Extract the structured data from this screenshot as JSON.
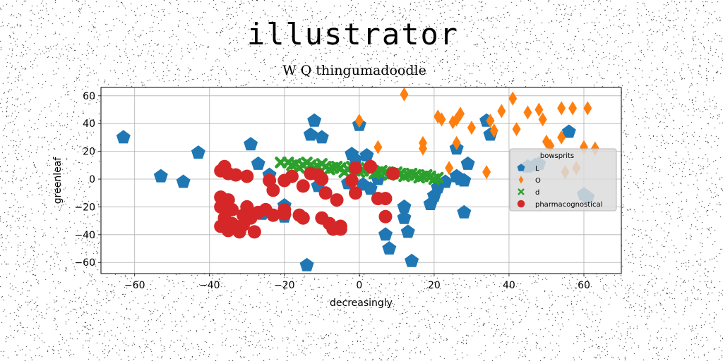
{
  "chart_data": {
    "type": "scatter",
    "title": "illustrator",
    "subtitle": "W Q thingumadoodle",
    "xlabel": "decreasingly",
    "ylabel": "greenleaf",
    "xlim": [
      -69,
      70
    ],
    "ylim": [
      -68,
      66
    ],
    "xticks": [
      -60,
      -40,
      -20,
      0,
      20,
      40,
      60
    ],
    "yticks": [
      -60,
      -40,
      -20,
      0,
      20,
      40,
      60
    ],
    "grid": true,
    "legend": {
      "title": "bowsprits",
      "placement": "right"
    },
    "series": [
      {
        "name": "L",
        "marker": "pentagon",
        "color": "#1f77b4",
        "points": [
          [
            -63,
            30
          ],
          [
            -53,
            2
          ],
          [
            -47,
            -2
          ],
          [
            -43,
            19
          ],
          [
            -29,
            25
          ],
          [
            -27,
            11
          ],
          [
            -24,
            3
          ],
          [
            -20,
            -19
          ],
          [
            -20,
            -27
          ],
          [
            -14,
            -62
          ],
          [
            -13,
            32
          ],
          [
            -12,
            42
          ],
          [
            -11,
            -5
          ],
          [
            -10,
            30
          ],
          [
            -3,
            -3
          ],
          [
            -2,
            18
          ],
          [
            -1,
            14
          ],
          [
            0,
            39
          ],
          [
            1,
            -4
          ],
          [
            2,
            17
          ],
          [
            5,
            0
          ],
          [
            7,
            -40
          ],
          [
            8,
            -50
          ],
          [
            12,
            -20
          ],
          [
            12,
            -28
          ],
          [
            13,
            -38
          ],
          [
            14,
            -59
          ],
          [
            19,
            -18
          ],
          [
            20,
            -12
          ],
          [
            21,
            -6
          ],
          [
            23,
            -2
          ],
          [
            26,
            22
          ],
          [
            27,
            0
          ],
          [
            28,
            -1
          ],
          [
            28,
            -24
          ],
          [
            29,
            11
          ],
          [
            34,
            42
          ],
          [
            35,
            32
          ],
          [
            45,
            9
          ],
          [
            47,
            10
          ],
          [
            48,
            11
          ],
          [
            56,
            34
          ],
          [
            60,
            -11
          ],
          [
            61,
            -13
          ],
          [
            -26,
            -25
          ],
          [
            3,
            -7
          ],
          [
            26,
            2
          ]
        ]
      },
      {
        "name": "O",
        "marker": "diamond",
        "color": "#ff7f0e",
        "points": [
          [
            0,
            42
          ],
          [
            5,
            23
          ],
          [
            12,
            61
          ],
          [
            17,
            22
          ],
          [
            17,
            26
          ],
          [
            21,
            45
          ],
          [
            22,
            43
          ],
          [
            24,
            8
          ],
          [
            25,
            41
          ],
          [
            26,
            26
          ],
          [
            26,
            43
          ],
          [
            27,
            47
          ],
          [
            30,
            37
          ],
          [
            34,
            5
          ],
          [
            35,
            42
          ],
          [
            36,
            35
          ],
          [
            38,
            49
          ],
          [
            41,
            58
          ],
          [
            42,
            36
          ],
          [
            45,
            48
          ],
          [
            48,
            50
          ],
          [
            49,
            43
          ],
          [
            50,
            27
          ],
          [
            51,
            24
          ],
          [
            54,
            51
          ],
          [
            54,
            30
          ],
          [
            55,
            5
          ],
          [
            57,
            51
          ],
          [
            58,
            8
          ],
          [
            60,
            23
          ],
          [
            61,
            51
          ],
          [
            63,
            22
          ]
        ]
      },
      {
        "name": "d",
        "marker": "x",
        "color": "#2ca02c",
        "points": [
          [
            -21,
            12
          ],
          [
            -19,
            12
          ],
          [
            -17,
            11
          ],
          [
            -15,
            10
          ],
          [
            -13,
            10
          ],
          [
            -11,
            9
          ],
          [
            -9,
            9
          ],
          [
            -7,
            8
          ],
          [
            -5,
            8
          ],
          [
            -3,
            7
          ],
          [
            -1,
            7
          ],
          [
            1,
            6
          ],
          [
            3,
            6
          ],
          [
            5,
            5
          ],
          [
            7,
            5
          ],
          [
            9,
            4
          ],
          [
            11,
            4
          ],
          [
            13,
            3
          ],
          [
            15,
            3
          ],
          [
            17,
            2
          ],
          [
            19,
            2
          ],
          [
            21,
            1
          ],
          [
            -18,
            10
          ],
          [
            -14,
            12
          ],
          [
            -10,
            11
          ],
          [
            -6,
            9
          ],
          [
            -2,
            9
          ],
          [
            2,
            8
          ],
          [
            6,
            6
          ],
          [
            10,
            5
          ],
          [
            14,
            4
          ],
          [
            18,
            3
          ],
          [
            -16,
            8
          ],
          [
            -12,
            8
          ],
          [
            -8,
            7
          ],
          [
            -4,
            5
          ],
          [
            0,
            5
          ],
          [
            4,
            4
          ],
          [
            8,
            3
          ],
          [
            12,
            2
          ],
          [
            16,
            1
          ],
          [
            20,
            0
          ]
        ]
      },
      {
        "name": "pharmacognostical",
        "marker": "circle",
        "color": "#d62728",
        "points": [
          [
            -37,
            6
          ],
          [
            -36,
            9
          ],
          [
            -35,
            4
          ],
          [
            -33,
            3
          ],
          [
            -30,
            2
          ],
          [
            -24,
            -1
          ],
          [
            -23,
            -8
          ],
          [
            -20,
            -1
          ],
          [
            -18,
            2
          ],
          [
            -15,
            -5
          ],
          [
            -13,
            4
          ],
          [
            -11,
            3
          ],
          [
            -10,
            0
          ],
          [
            -9,
            -10
          ],
          [
            -6,
            -15
          ],
          [
            -2,
            -1
          ],
          [
            -1,
            -10
          ],
          [
            3,
            9
          ],
          [
            5,
            -14
          ],
          [
            7,
            -14
          ],
          [
            9,
            4
          ],
          [
            -37,
            -13
          ],
          [
            -35,
            -15
          ],
          [
            -37,
            -20
          ],
          [
            -34,
            -22
          ],
          [
            -36,
            -28
          ],
          [
            -34,
            -32
          ],
          [
            -31,
            -26
          ],
          [
            -29,
            -28
          ],
          [
            -30,
            -20
          ],
          [
            -27,
            -24
          ],
          [
            -25,
            -22
          ],
          [
            -23,
            -26
          ],
          [
            -20,
            -22
          ],
          [
            -16,
            -26
          ],
          [
            -15,
            -28
          ],
          [
            -10,
            -28
          ],
          [
            -8,
            -32
          ],
          [
            -7,
            -36
          ],
          [
            -5,
            -36
          ],
          [
            -32,
            -38
          ],
          [
            -28,
            -38
          ],
          [
            -37,
            -34
          ],
          [
            -35,
            -37
          ],
          [
            -1,
            8
          ],
          [
            -31,
            -33
          ],
          [
            -33,
            -34
          ],
          [
            -5,
            -34
          ],
          [
            -20,
            -25
          ],
          [
            7,
            -27
          ]
        ]
      }
    ]
  }
}
